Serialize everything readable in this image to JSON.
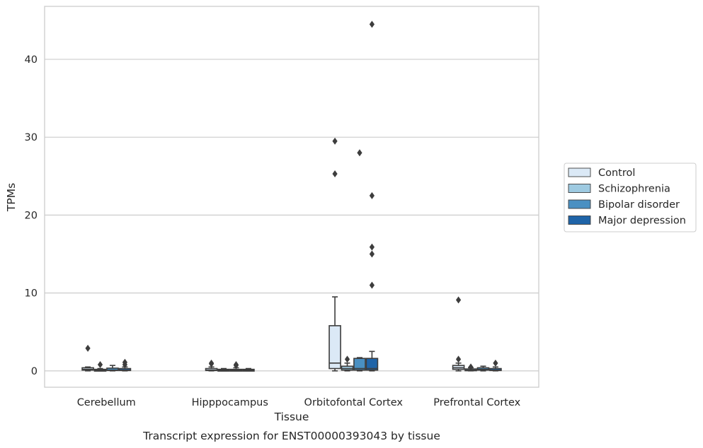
{
  "chart_data": {
    "type": "box",
    "title": "Transcript expression for ENST00000393043 by tissue",
    "xlabel": "Tissue",
    "ylabel": "TPMs",
    "categories": [
      "Cerebellum",
      "Hipppocampus",
      "Orbitofontal Cortex",
      "Prefrontal Cortex"
    ],
    "ylim": [
      -2.1,
      46.8
    ],
    "yticks": [
      0,
      10,
      20,
      30,
      40
    ],
    "grid": "horizontal",
    "legend_position": "right",
    "series": [
      {
        "name": "Control",
        "color": "#dbe9f6",
        "boxes": [
          {
            "whislo": 0.0,
            "q1": 0.1,
            "med": 0.2,
            "q3": 0.4,
            "whishi": 0.5,
            "fliers": [
              2.9
            ]
          },
          {
            "whislo": 0.0,
            "q1": 0.05,
            "med": 0.1,
            "q3": 0.3,
            "whishi": 0.5,
            "fliers": [
              0.9,
              1.0
            ]
          },
          {
            "whislo": 0.0,
            "q1": 0.3,
            "med": 1.0,
            "q3": 5.8,
            "whishi": 9.5,
            "fliers": [
              25.3,
              29.5
            ]
          },
          {
            "whislo": 0.0,
            "q1": 0.2,
            "med": 0.4,
            "q3": 0.7,
            "whishi": 1.0,
            "fliers": [
              1.5,
              9.1
            ]
          }
        ]
      },
      {
        "name": "Schizophrenia",
        "color": "#9ecae1",
        "boxes": [
          {
            "whislo": 0.0,
            "q1": 0.05,
            "med": 0.1,
            "q3": 0.2,
            "whishi": 0.3,
            "fliers": [
              0.8
            ]
          },
          {
            "whislo": 0.0,
            "q1": 0.05,
            "med": 0.1,
            "q3": 0.2,
            "whishi": 0.3,
            "fliers": []
          },
          {
            "whislo": 0.0,
            "q1": 0.1,
            "med": 0.3,
            "q3": 0.6,
            "whishi": 1.0,
            "fliers": [
              1.5
            ]
          },
          {
            "whislo": 0.0,
            "q1": 0.05,
            "med": 0.1,
            "q3": 0.25,
            "whishi": 0.4,
            "fliers": [
              0.5
            ]
          }
        ]
      },
      {
        "name": "Bipolar disorder",
        "color": "#4a90c2",
        "boxes": [
          {
            "whislo": 0.0,
            "q1": 0.05,
            "med": 0.1,
            "q3": 0.35,
            "whishi": 0.7,
            "fliers": []
          },
          {
            "whislo": 0.0,
            "q1": 0.05,
            "med": 0.1,
            "q3": 0.2,
            "whishi": 0.4,
            "fliers": [
              0.7,
              0.8
            ]
          },
          {
            "whislo": 0.0,
            "q1": 0.1,
            "med": 0.3,
            "q3": 1.6,
            "whishi": 1.7,
            "fliers": [
              28.0
            ]
          },
          {
            "whislo": 0.0,
            "q1": 0.1,
            "med": 0.2,
            "q3": 0.4,
            "whishi": 0.6,
            "fliers": []
          }
        ]
      },
      {
        "name": "Major depression",
        "color": "#1f64a8",
        "boxes": [
          {
            "whislo": 0.0,
            "q1": 0.05,
            "med": 0.1,
            "q3": 0.3,
            "whishi": 0.5,
            "fliers": [
              0.8,
              1.1
            ]
          },
          {
            "whislo": 0.0,
            "q1": 0.05,
            "med": 0.1,
            "q3": 0.2,
            "whishi": 0.3,
            "fliers": []
          },
          {
            "whislo": 0.0,
            "q1": 0.1,
            "med": 0.3,
            "q3": 1.6,
            "whishi": 2.5,
            "fliers": [
              11.0,
              15.0,
              15.9,
              22.5,
              44.5
            ]
          },
          {
            "whislo": 0.0,
            "q1": 0.05,
            "med": 0.1,
            "q3": 0.3,
            "whishi": 0.5,
            "fliers": [
              1.0
            ]
          }
        ]
      }
    ]
  }
}
